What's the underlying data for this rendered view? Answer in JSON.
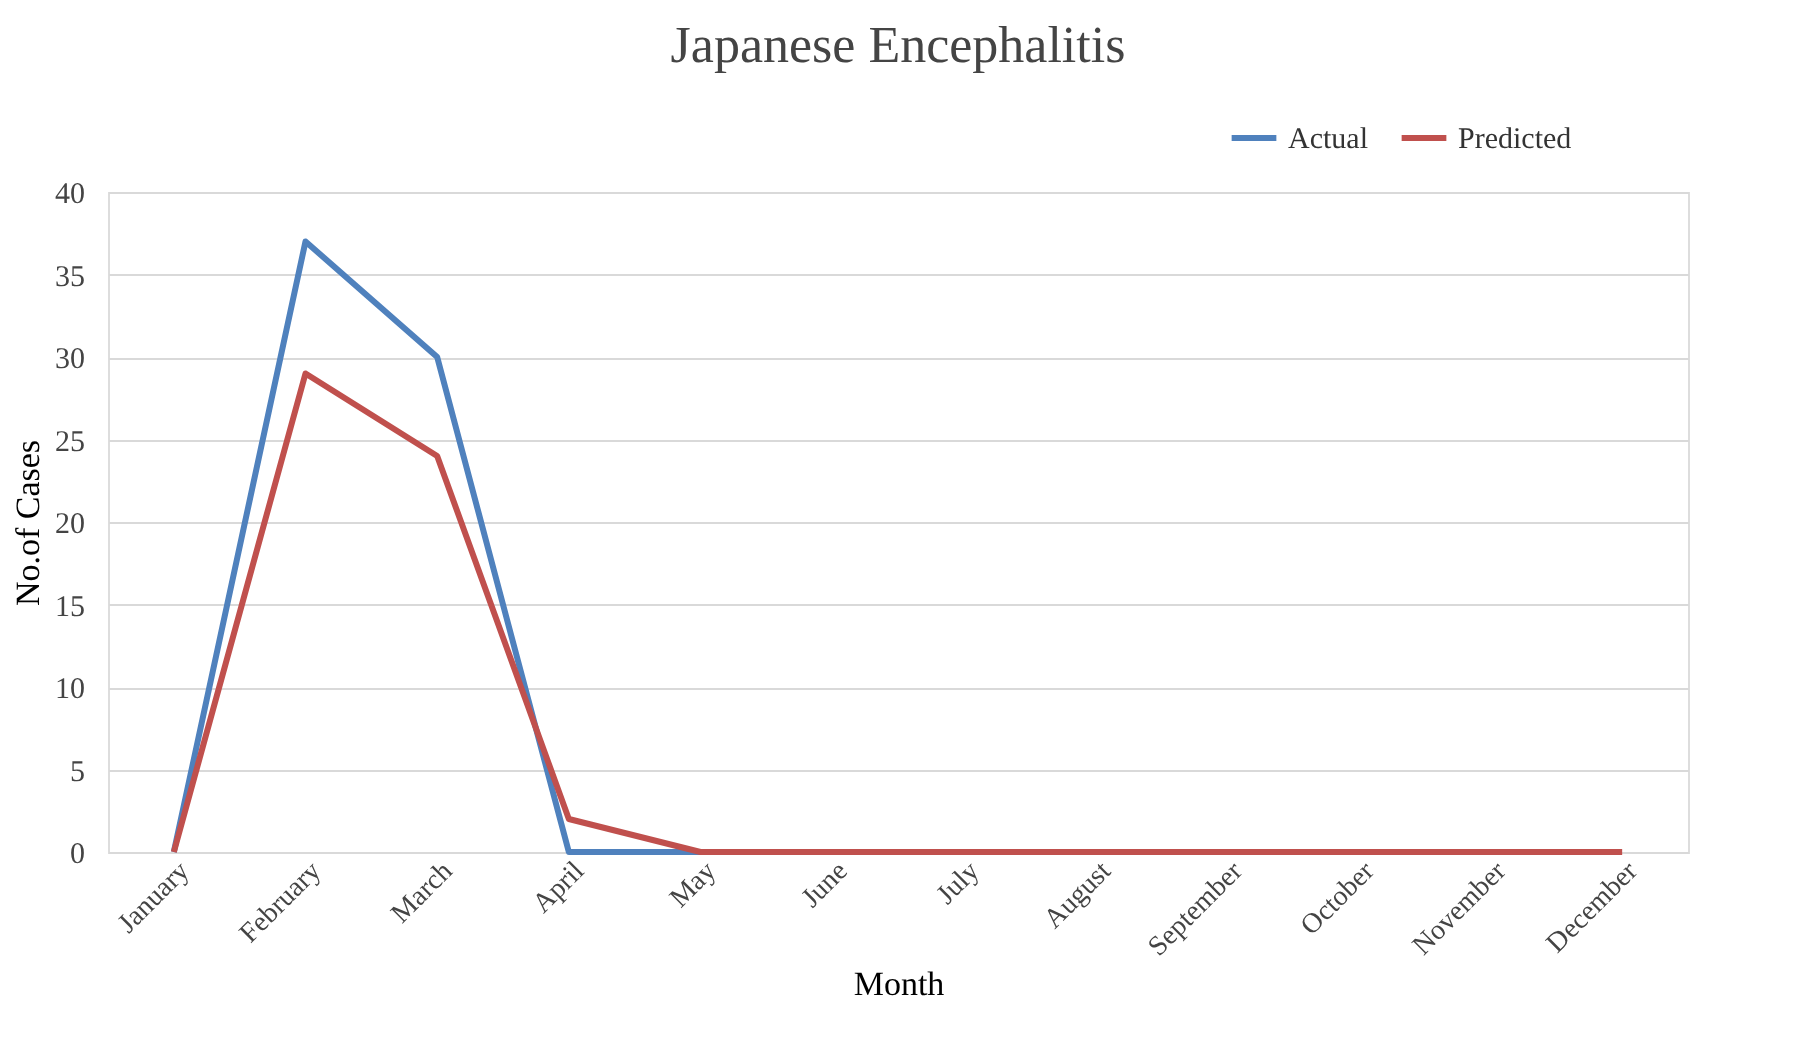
{
  "chart_data": {
    "type": "line",
    "title": "Japanese Encephalitis",
    "xlabel": "Month",
    "ylabel": "No.of Cases",
    "categories": [
      "January",
      "February",
      "March",
      "April",
      "May",
      "June",
      "July",
      "August",
      "September",
      "October",
      "November",
      "December"
    ],
    "series": [
      {
        "name": "Actual",
        "color": "#4f81bd",
        "values": [
          0,
          37,
          30,
          0,
          0,
          null,
          null,
          null,
          null,
          null,
          null,
          null
        ]
      },
      {
        "name": "Predicted",
        "color": "#c0504d",
        "values": [
          0,
          29,
          24,
          2,
          0,
          0,
          0,
          0,
          0,
          0,
          0,
          0
        ]
      }
    ],
    "ylim": [
      0,
      40
    ],
    "yticks": [
      0,
      5,
      10,
      15,
      20,
      25,
      30,
      35,
      40
    ],
    "grid": "y",
    "legend": "top right",
    "marker": "none",
    "line_style": "solid"
  }
}
